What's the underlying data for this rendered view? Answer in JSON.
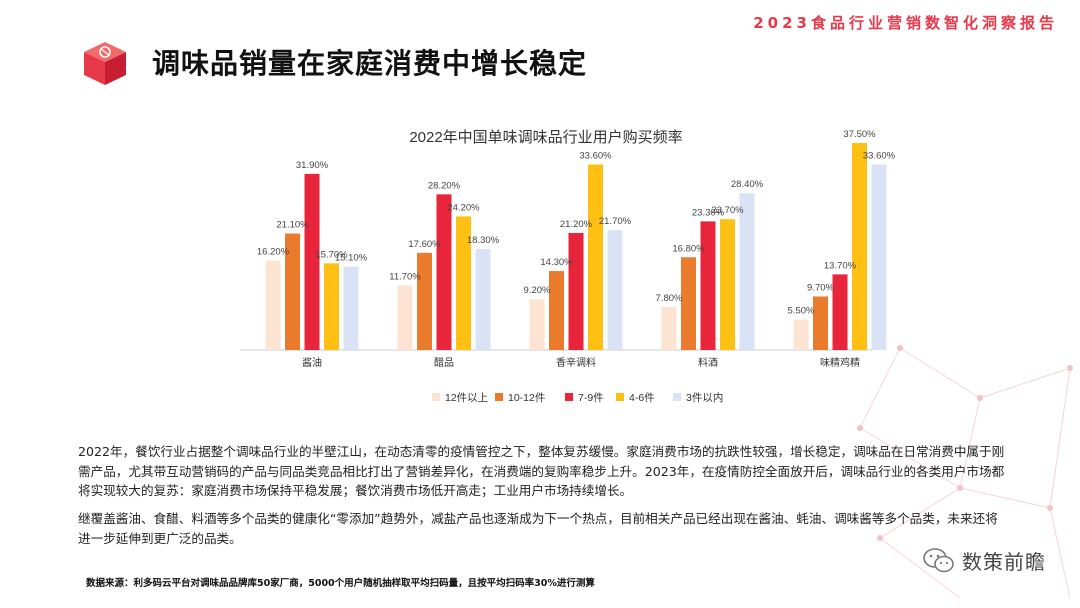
{
  "header": {
    "report_tag": "2023食品行业营销数智化洞察报告",
    "accent": "#e8394a"
  },
  "page": {
    "title": "调味品销量在家庭消费中增长稳定"
  },
  "chart_data": {
    "type": "bar",
    "title": "2022年中国单味调味品行业用户购买频率",
    "categories": [
      "酱油",
      "醋品",
      "香辛调料",
      "料酒",
      "味精鸡精"
    ],
    "series": [
      {
        "name": "12件以上",
        "color": "#fde3d2",
        "values": [
          16.2,
          11.7,
          9.2,
          7.8,
          5.5
        ],
        "labels": [
          "16.20%",
          "11.70%",
          "9.20%",
          "7.80%",
          "5.50%"
        ]
      },
      {
        "name": "10-12件",
        "color": "#ea7a2c",
        "values": [
          21.1,
          17.6,
          14.3,
          16.8,
          9.7
        ],
        "labels": [
          "21.10%",
          "17.60%",
          "14.30%",
          "16.80%",
          "9.70%"
        ]
      },
      {
        "name": "7-9件",
        "color": "#e8253a",
        "values": [
          31.9,
          28.2,
          21.2,
          23.3,
          13.7
        ],
        "labels": [
          "31.90%",
          "28.20%",
          "21.20%",
          "23.30%",
          "13.70%"
        ]
      },
      {
        "name": "4-6件",
        "color": "#fdc013",
        "values": [
          15.7,
          24.2,
          33.6,
          23.7,
          37.5
        ],
        "labels": [
          "15.70%",
          "24.20%",
          "33.60%",
          "23.70%",
          "37.50%"
        ]
      },
      {
        "name": "3件以内",
        "color": "#dae3f5",
        "values": [
          15.1,
          18.3,
          21.7,
          28.4,
          33.6
        ],
        "labels": [
          "15.10%",
          "18.30%",
          "21.70%",
          "28.40%",
          "33.60%"
        ]
      }
    ],
    "ylim": [
      0,
      37.5
    ],
    "grid": false,
    "legend": "bottom"
  },
  "body": {
    "paragraph1": "2022年，餐饮行业占据整个调味品行业的半壁江山，在动态清零的疫情管控之下，整体复苏缓慢。家庭消费市场的抗跌性较强，增长稳定，调味品在日常消费中属于刚需产品，尤其带互动营销码的产品与同品类竞品相比打出了营销差异化，在消费端的复购率稳步上升。2023年，在疫情防控全面放开后，调味品行业的各类用户市场都将实现较大的复苏：家庭消费市场保持平稳发展；餐饮消费市场低开高走；工业用户市场持续增长。",
    "paragraph2": "继覆盖酱油、食醋、料酒等多个品类的健康化“零添加”趋势外，减盐产品也逐渐成为下一个热点，目前相关产品已经出现在酱油、蚝油、调味酱等多个品类，未来还将进一步延伸到更广泛的品类。"
  },
  "footer": {
    "source": "数据来源：利多码云平台对调味品品牌库50家厂商，5000个用户随机抽样取平均扫码量，且按平均扫码率30%进行测算",
    "watermark": "数策前瞻"
  }
}
